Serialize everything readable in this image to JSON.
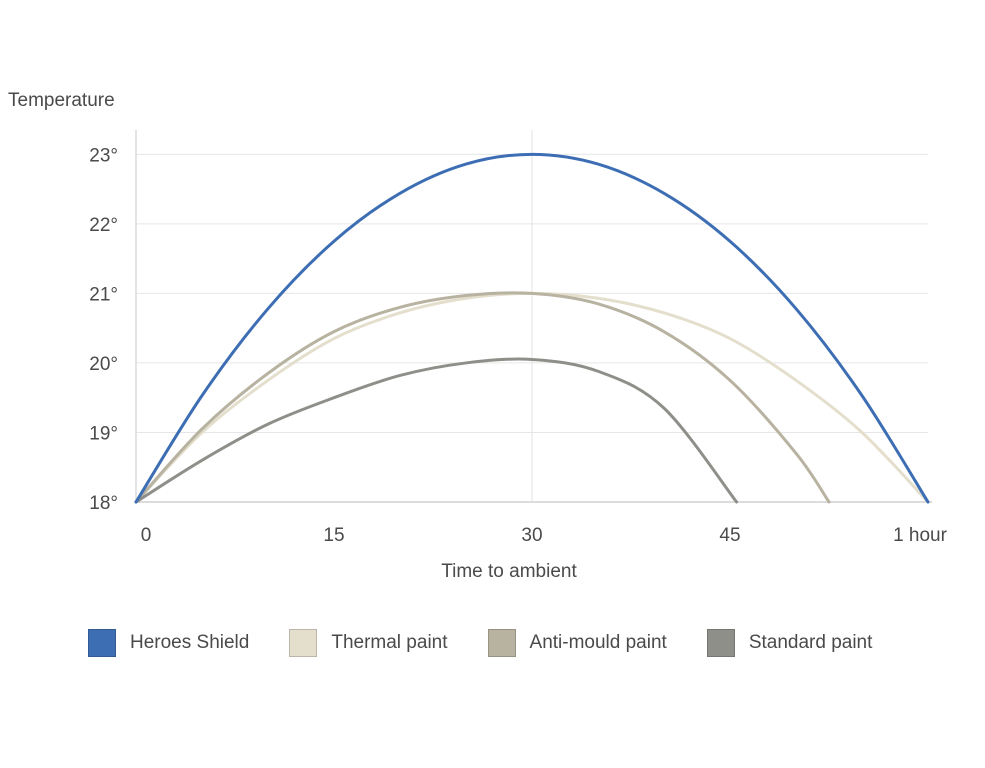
{
  "chart_data": {
    "type": "line",
    "title": "",
    "xlabel": "Time to ambient",
    "ylabel": "Temperature",
    "x_ticks": [
      {
        "value": 0,
        "label": "0"
      },
      {
        "value": 15,
        "label": "15"
      },
      {
        "value": 30,
        "label": "30"
      },
      {
        "value": 45,
        "label": "45"
      },
      {
        "value": 60,
        "label": "1 hour"
      }
    ],
    "y_ticks": [
      {
        "value": 18,
        "label": "18°"
      },
      {
        "value": 19,
        "label": "19°"
      },
      {
        "value": 20,
        "label": "20°"
      },
      {
        "value": 21,
        "label": "21°"
      },
      {
        "value": 22,
        "label": "22°"
      },
      {
        "value": 23,
        "label": "23°"
      }
    ],
    "xlim": [
      0,
      60
    ],
    "ylim": [
      18,
      23.35
    ],
    "grid": true,
    "legend_position": "bottom",
    "series": [
      {
        "name": "Heroes Shield",
        "color": "#3d6eb4",
        "x": [
          0,
          5,
          10,
          15,
          20,
          25,
          30,
          35,
          40,
          45,
          50,
          55,
          60
        ],
        "y": [
          18,
          19.53,
          20.78,
          21.75,
          22.44,
          22.86,
          23,
          22.86,
          22.44,
          21.75,
          20.78,
          19.53,
          18
        ]
      },
      {
        "name": "Thermal paint",
        "color": "#e4dfcd",
        "x": [
          0,
          5,
          10,
          15,
          20,
          25,
          30,
          35,
          40,
          45,
          50,
          55,
          60
        ],
        "y": [
          18,
          19.0,
          19.75,
          20.35,
          20.72,
          20.93,
          21,
          20.93,
          20.72,
          20.35,
          19.75,
          19.0,
          18
        ]
      },
      {
        "name": "Anti-mould paint",
        "color": "#b8b2a1",
        "x": [
          0,
          5,
          10,
          15,
          20,
          25,
          30,
          35,
          40,
          45,
          50,
          52.5
        ],
        "y": [
          18,
          19.05,
          19.85,
          20.45,
          20.8,
          20.97,
          21,
          20.85,
          20.45,
          19.75,
          18.7,
          18
        ]
      },
      {
        "name": "Standard paint",
        "color": "#8f8f8a",
        "x": [
          0,
          5,
          10,
          15,
          20,
          25,
          30,
          35,
          40,
          45.5
        ],
        "y": [
          18,
          18.6,
          19.12,
          19.5,
          19.82,
          20.0,
          20.05,
          19.88,
          19.35,
          18
        ]
      }
    ]
  }
}
